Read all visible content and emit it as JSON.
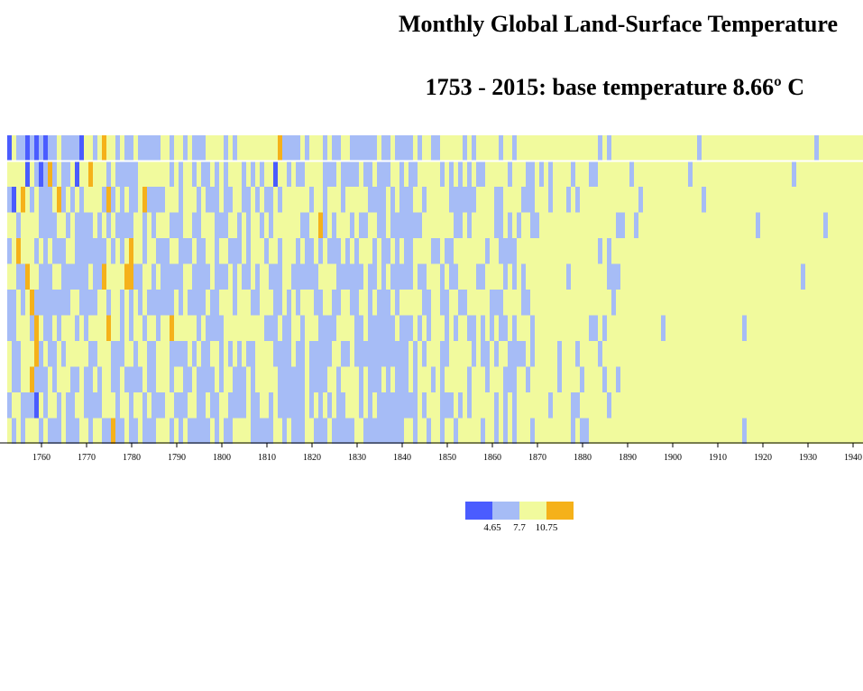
{
  "chart_data": {
    "type": "heatmap",
    "title": "Monthly Global Land-Surface Temperature",
    "subtitle": "1753 - 2015: base temperature 8.66º C",
    "base_temperature": 8.66,
    "x_range": [
      1753,
      2015
    ],
    "x_ticks": [
      "1760",
      "1770",
      "1780",
      "1790",
      "1800",
      "1810",
      "1820",
      "1830",
      "1840",
      "1850",
      "1860",
      "1870",
      "1880",
      "1890",
      "1900",
      "1910",
      "1920",
      "1930",
      "1940"
    ],
    "x_tick_values": [
      1760,
      1770,
      1780,
      1790,
      1800,
      1810,
      1820,
      1830,
      1840,
      1850,
      1860,
      1870,
      1880,
      1890,
      1900,
      1910,
      1920,
      1930,
      1940
    ],
    "rows": 12,
    "visible_year_range": [
      1753,
      1942
    ],
    "legend": {
      "thresholds": [
        "4.65",
        "7.7",
        "10.75"
      ],
      "threshold_values": [
        4.65,
        7.7,
        10.75
      ],
      "colors": [
        "#4a5cff",
        "#a6bcf6",
        "#f1fa9d",
        "#f5b11a"
      ]
    },
    "colors": {
      "very_cold": "#4a5cff",
      "cool": "#a6bcf6",
      "mild": "#f1fa9d",
      "warm": "#f5b11a"
    },
    "cells": [
      {
        "year": 1753,
        "month": 1,
        "temp": 4.2
      },
      {
        "year": 1757,
        "month": 1,
        "temp": 4.3
      },
      {
        "year": 1759,
        "month": 1,
        "temp": 4.4
      },
      {
        "year": 1761,
        "month": 1,
        "temp": 4.1
      },
      {
        "year": 1769,
        "month": 1,
        "temp": 4.3
      },
      {
        "year": 1766,
        "month": 1,
        "temp": 7.2
      },
      {
        "year": 1774,
        "month": 1,
        "temp": 11.2
      },
      {
        "year": 1813,
        "month": 1,
        "temp": 11.0
      },
      {
        "year": 1757,
        "month": 2,
        "temp": 4.1
      },
      {
        "year": 1760,
        "month": 2,
        "temp": 4.2
      },
      {
        "year": 1768,
        "month": 2,
        "temp": 4.4
      },
      {
        "year": 1812,
        "month": 2,
        "temp": 4.3
      },
      {
        "year": 1762,
        "month": 2,
        "temp": 11.1
      },
      {
        "year": 1771,
        "month": 2,
        "temp": 11.3
      },
      {
        "year": 1754,
        "month": 3,
        "temp": 4.3
      },
      {
        "year": 1756,
        "month": 3,
        "temp": 11.2
      },
      {
        "year": 1764,
        "month": 3,
        "temp": 11.0
      },
      {
        "year": 1775,
        "month": 3,
        "temp": 11.3
      },
      {
        "year": 1783,
        "month": 3,
        "temp": 11.1
      },
      {
        "year": 1822,
        "month": 4,
        "temp": 11.2
      },
      {
        "year": 1755,
        "month": 5,
        "temp": 11.1
      },
      {
        "year": 1780,
        "month": 5,
        "temp": 11.4
      },
      {
        "year": 1757,
        "month": 6,
        "temp": 11.2
      },
      {
        "year": 1774,
        "month": 6,
        "temp": 11.0
      },
      {
        "year": 1779,
        "month": 6,
        "temp": 11.3
      },
      {
        "year": 1780,
        "month": 6,
        "temp": 11.5
      },
      {
        "year": 1758,
        "month": 7,
        "temp": 11.1
      },
      {
        "year": 1759,
        "month": 8,
        "temp": 11.2
      },
      {
        "year": 1775,
        "month": 8,
        "temp": 11.1
      },
      {
        "year": 1789,
        "month": 8,
        "temp": 11.3
      },
      {
        "year": 1759,
        "month": 9,
        "temp": 11.2
      },
      {
        "year": 1758,
        "month": 10,
        "temp": 11.0
      },
      {
        "year": 1759,
        "month": 11,
        "temp": 4.4
      },
      {
        "year": 1776,
        "month": 12,
        "temp": 11.1
      }
    ]
  }
}
